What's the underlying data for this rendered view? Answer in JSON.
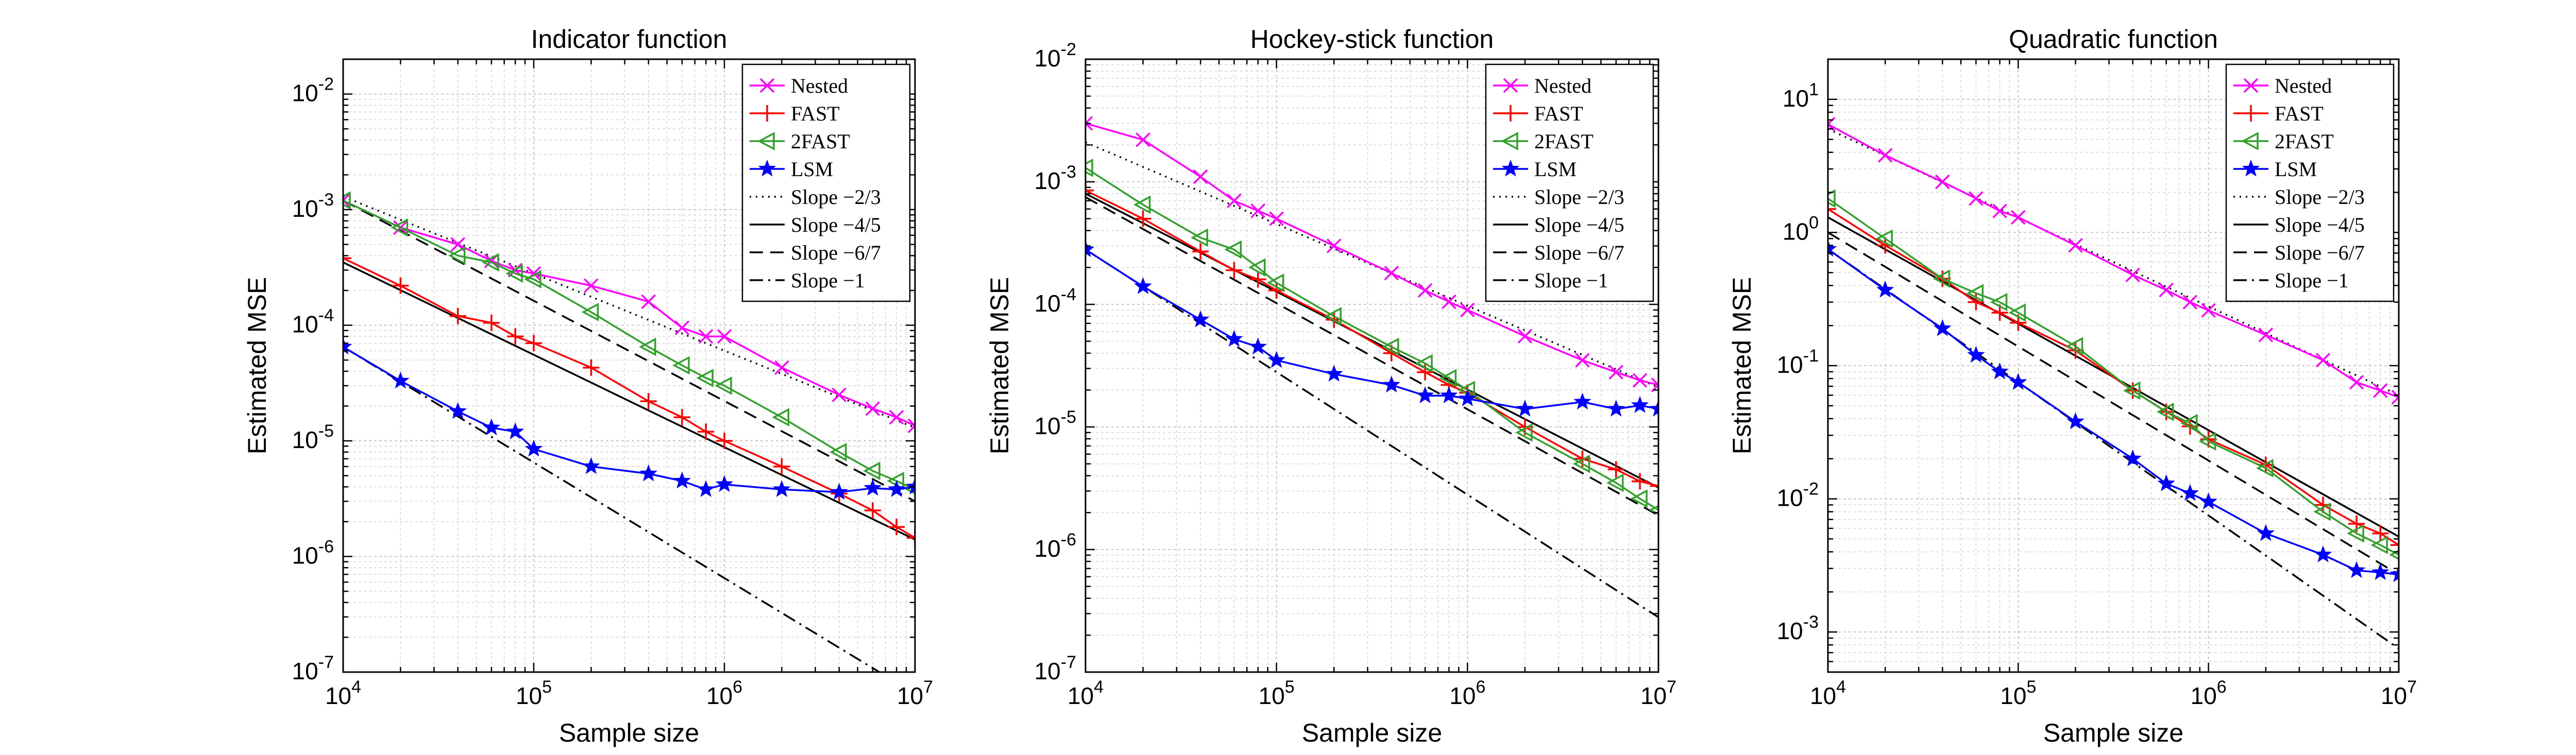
{
  "chart_data": [
    {
      "type": "line",
      "title": "Indicator function",
      "xlabel": "Sample size",
      "ylabel": "Estimated MSE",
      "x_scale": "log",
      "y_scale": "log",
      "xlim": [
        10000,
        10000000
      ],
      "ylim": [
        1e-07,
        0.02
      ],
      "xticks": [
        10000,
        100000,
        1000000,
        10000000
      ],
      "xtick_labels": [
        {
          "base": "10",
          "exp": "4"
        },
        {
          "base": "10",
          "exp": "5"
        },
        {
          "base": "10",
          "exp": "6"
        },
        {
          "base": "10",
          "exp": "7"
        }
      ],
      "yticks": [
        1e-07,
        1e-06,
        1e-05,
        0.0001,
        0.001,
        0.01
      ],
      "ytick_labels": [
        {
          "base": "10",
          "exp": "-7"
        },
        {
          "base": "10",
          "exp": "-6"
        },
        {
          "base": "10",
          "exp": "-5"
        },
        {
          "base": "10",
          "exp": "-4"
        },
        {
          "base": "10",
          "exp": "-3"
        },
        {
          "base": "10",
          "exp": "-2"
        }
      ],
      "grid": true,
      "legend_position": "top-right",
      "x": [
        10000,
        20000,
        40000,
        60000,
        80000,
        100000,
        200000,
        400000,
        600000,
        800000,
        1000000,
        2000000,
        4000000,
        6000000,
        8000000,
        10000000
      ],
      "series": [
        {
          "name": "Nested",
          "color": "#ff00ff",
          "marker": "x",
          "values": [
            0.0012,
            0.0007,
            0.0005,
            0.00036,
            0.0003,
            0.00028,
            0.00022,
            0.00016,
            9.5e-05,
            8e-05,
            8e-05,
            4.3e-05,
            2.5e-05,
            1.9e-05,
            1.6e-05,
            1.35e-05
          ]
        },
        {
          "name": "FAST",
          "color": "#ff0000",
          "marker": "plus",
          "values": [
            0.00038,
            0.00022,
            0.00012,
            0.000105,
            8e-05,
            7e-05,
            4.3e-05,
            2.2e-05,
            1.6e-05,
            1.2e-05,
            1e-05,
            6e-06,
            3.5e-06,
            2.5e-06,
            1.8e-06,
            1.45e-06
          ]
        },
        {
          "name": "2FAST",
          "color": "#33a02c",
          "marker": "triangle-left",
          "values": [
            0.0012,
            0.0007,
            0.0004,
            0.00035,
            0.00028,
            0.00025,
            0.00013,
            6.5e-05,
            4.5e-05,
            3.5e-05,
            3e-05,
            1.6e-05,
            8e-06,
            5.5e-06,
            4.5e-06,
            3.8e-06
          ]
        },
        {
          "name": "LSM",
          "color": "#0000ff",
          "marker": "star",
          "values": [
            6.5e-05,
            3.3e-05,
            1.8e-05,
            1.3e-05,
            1.2e-05,
            8.5e-06,
            6e-06,
            5.2e-06,
            4.5e-06,
            3.8e-06,
            4.2e-06,
            3.8e-06,
            3.6e-06,
            3.9e-06,
            3.8e-06,
            4e-06
          ]
        },
        {
          "name": "Slope −2/3",
          "color": "#000000",
          "dash": "dotted",
          "values_at_ends": [
            0.0013,
            1.3e-05
          ]
        },
        {
          "name": "Slope −4/5",
          "color": "#000000",
          "dash": "solid",
          "values_at_ends": [
            0.00035,
            1.4e-06
          ]
        },
        {
          "name": "Slope −6/7",
          "color": "#000000",
          "dash": "dashed",
          "values_at_ends": [
            0.0012,
            3e-06
          ]
        },
        {
          "name": "Slope −1",
          "color": "#000000",
          "dash": "dashdot",
          "values_at_ends": [
            6.5e-05,
            6.5e-08
          ]
        }
      ]
    },
    {
      "type": "line",
      "title": "Hockey-stick function",
      "xlabel": "Sample size",
      "ylabel": "Estimated MSE",
      "x_scale": "log",
      "y_scale": "log",
      "xlim": [
        10000,
        10000000
      ],
      "ylim": [
        1e-07,
        0.01
      ],
      "xticks": [
        10000,
        100000,
        1000000,
        10000000
      ],
      "xtick_labels": [
        {
          "base": "10",
          "exp": "4"
        },
        {
          "base": "10",
          "exp": "5"
        },
        {
          "base": "10",
          "exp": "6"
        },
        {
          "base": "10",
          "exp": "7"
        }
      ],
      "yticks": [
        1e-07,
        1e-06,
        1e-05,
        0.0001,
        0.001,
        0.01
      ],
      "ytick_labels": [
        {
          "base": "10",
          "exp": "-7"
        },
        {
          "base": "10",
          "exp": "-6"
        },
        {
          "base": "10",
          "exp": "-5"
        },
        {
          "base": "10",
          "exp": "-4"
        },
        {
          "base": "10",
          "exp": "-3"
        },
        {
          "base": "10",
          "exp": "-2"
        }
      ],
      "grid": true,
      "legend_position": "top-right",
      "x": [
        10000,
        20000,
        40000,
        60000,
        80000,
        100000,
        200000,
        400000,
        600000,
        800000,
        1000000,
        2000000,
        4000000,
        6000000,
        8000000,
        10000000
      ],
      "series": [
        {
          "name": "Nested",
          "color": "#ff00ff",
          "marker": "x",
          "values": [
            0.003,
            0.0022,
            0.0011,
            0.0007,
            0.00058,
            0.0005,
            0.0003,
            0.00018,
            0.00013,
            0.000105,
            9e-05,
            5.5e-05,
            3.5e-05,
            2.8e-05,
            2.4e-05,
            2.2e-05
          ]
        },
        {
          "name": "FAST",
          "color": "#ff0000",
          "marker": "plus",
          "values": [
            0.00085,
            0.0005,
            0.00027,
            0.00019,
            0.00016,
            0.00013,
            7.5e-05,
            4e-05,
            2.8e-05,
            2.2e-05,
            1.9e-05,
            1e-05,
            5.5e-06,
            4.5e-06,
            3.6e-06,
            3.3e-06
          ]
        },
        {
          "name": "2FAST",
          "color": "#33a02c",
          "marker": "triangle-left",
          "values": [
            0.0013,
            0.00065,
            0.00035,
            0.00028,
            0.0002,
            0.00015,
            8e-05,
            4.5e-05,
            3.3e-05,
            2.5e-05,
            2e-05,
            9e-06,
            5e-06,
            3.5e-06,
            2.6e-06,
            2.1e-06
          ]
        },
        {
          "name": "LSM",
          "color": "#0000ff",
          "marker": "star",
          "values": [
            0.00028,
            0.00014,
            7.5e-05,
            5.2e-05,
            4.5e-05,
            3.5e-05,
            2.7e-05,
            2.2e-05,
            1.8e-05,
            1.8e-05,
            1.7e-05,
            1.4e-05,
            1.6e-05,
            1.4e-05,
            1.5e-05,
            1.4e-05
          ]
        },
        {
          "name": "Slope −2/3",
          "color": "#000000",
          "dash": "dotted",
          "values_at_ends": [
            0.0021,
            2.1e-05
          ]
        },
        {
          "name": "Slope −4/5",
          "color": "#000000",
          "dash": "solid",
          "values_at_ends": [
            0.0008,
            3.2e-06
          ]
        },
        {
          "name": "Slope −6/7",
          "color": "#000000",
          "dash": "dashed",
          "values_at_ends": [
            0.00075,
            1.9e-06
          ]
        },
        {
          "name": "Slope −1",
          "color": "#000000",
          "dash": "dashdot",
          "values_at_ends": [
            0.00028,
            2.8e-07
          ]
        }
      ]
    },
    {
      "type": "line",
      "title": "Quadratic function",
      "xlabel": "Sample size",
      "ylabel": "Estimated MSE",
      "x_scale": "log",
      "y_scale": "log",
      "xlim": [
        10000,
        10000000
      ],
      "ylim": [
        0.0005,
        20
      ],
      "xticks": [
        10000,
        100000,
        1000000,
        10000000
      ],
      "xtick_labels": [
        {
          "base": "10",
          "exp": "4"
        },
        {
          "base": "10",
          "exp": "5"
        },
        {
          "base": "10",
          "exp": "6"
        },
        {
          "base": "10",
          "exp": "7"
        }
      ],
      "yticks": [
        0.001,
        0.01,
        0.1,
        1,
        10
      ],
      "ytick_labels": [
        {
          "base": "10",
          "exp": "-3"
        },
        {
          "base": "10",
          "exp": "-2"
        },
        {
          "base": "10",
          "exp": "-1"
        },
        {
          "base": "10",
          "exp": "0"
        },
        {
          "base": "10",
          "exp": "1"
        }
      ],
      "grid": true,
      "legend_position": "top-right",
      "x": [
        10000,
        20000,
        40000,
        60000,
        80000,
        100000,
        200000,
        400000,
        600000,
        800000,
        1000000,
        2000000,
        4000000,
        6000000,
        8000000,
        10000000
      ],
      "series": [
        {
          "name": "Nested",
          "color": "#ff00ff",
          "marker": "x",
          "values": [
            6.5,
            3.8,
            2.4,
            1.8,
            1.45,
            1.3,
            0.8,
            0.48,
            0.37,
            0.3,
            0.26,
            0.17,
            0.11,
            0.075,
            0.065,
            0.058
          ]
        },
        {
          "name": "FAST",
          "color": "#ff0000",
          "marker": "plus",
          "values": [
            1.5,
            0.8,
            0.45,
            0.3,
            0.25,
            0.21,
            0.13,
            0.065,
            0.045,
            0.035,
            0.028,
            0.018,
            0.009,
            0.0065,
            0.0055,
            0.0045
          ]
        },
        {
          "name": "2FAST",
          "color": "#33a02c",
          "marker": "triangle-left",
          "values": [
            1.8,
            0.9,
            0.45,
            0.35,
            0.3,
            0.25,
            0.14,
            0.065,
            0.045,
            0.037,
            0.027,
            0.017,
            0.008,
            0.0055,
            0.0045,
            0.0038
          ]
        },
        {
          "name": "LSM",
          "color": "#0000ff",
          "marker": "star",
          "values": [
            0.75,
            0.37,
            0.19,
            0.12,
            0.09,
            0.075,
            0.038,
            0.02,
            0.013,
            0.011,
            0.0095,
            0.0055,
            0.0038,
            0.0029,
            0.0028,
            0.0027
          ]
        },
        {
          "name": "Slope −2/3",
          "color": "#000000",
          "dash": "dotted",
          "values_at_ends": [
            6.0,
            0.06
          ]
        },
        {
          "name": "Slope −4/5",
          "color": "#000000",
          "dash": "solid",
          "values_at_ends": [
            1.3,
            0.0052
          ]
        },
        {
          "name": "Slope −6/7",
          "color": "#000000",
          "dash": "dashed",
          "values_at_ends": [
            1.0,
            0.0027
          ]
        },
        {
          "name": "Slope −1",
          "color": "#000000",
          "dash": "dashdot",
          "values_at_ends": [
            0.75,
            0.00075
          ]
        }
      ]
    }
  ]
}
